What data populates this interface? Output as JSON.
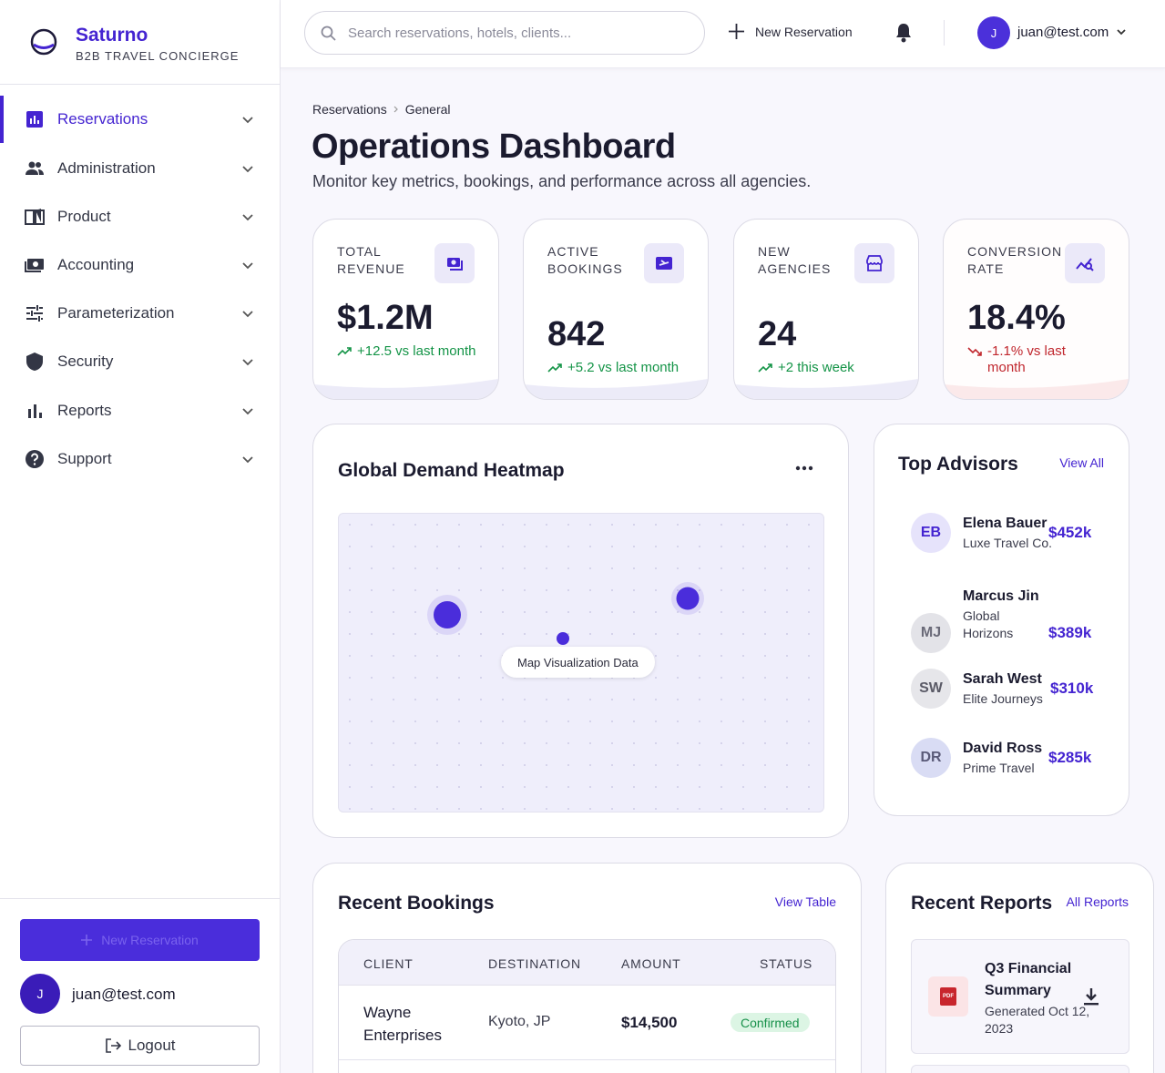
{
  "brand": {
    "name": "Saturno",
    "tagline": "B2B TRAVEL CONCIERGE"
  },
  "nav": [
    "Reservations",
    "Administration",
    "Product",
    "Accounting",
    "Parameterization",
    "Security",
    "Reports",
    "Support"
  ],
  "sidebar_footer": {
    "button": "New Reservation",
    "avatar": "J",
    "user": "juan@test.com",
    "logout": "Logout"
  },
  "topbar": {
    "search_placeholder": "Search reservations, hotels, clients...",
    "new_button": "New Reservation",
    "avatar": "J",
    "user": "juan@test.com"
  },
  "breadcrumb": [
    "Reservations",
    "General"
  ],
  "header": {
    "title": "Operations Dashboard",
    "subtitle": "Monitor key metrics, bookings, and performance across all agencies."
  },
  "kpis": [
    {
      "label": "TOTAL REVENUE",
      "value": "$1.2M",
      "change": "+12.5 vs last month",
      "trend": "up"
    },
    {
      "label": "ACTIVE BOOKINGS",
      "value": "842",
      "change": "+5.2 vs last month",
      "trend": "up"
    },
    {
      "label": "NEW AGENCIES",
      "value": "24",
      "change": "+2 this week",
      "trend": "up"
    },
    {
      "label": "CONVERSION RATE",
      "value": "18.4%",
      "change": "-1.1% vs last month",
      "trend": "down"
    }
  ],
  "heatmap": {
    "title": "Global Demand Heatmap",
    "label": "Map Visualization Data"
  },
  "advisors": {
    "title": "Top Advisors",
    "link": "View All",
    "items": [
      {
        "initials": "EB",
        "name": "Elena Bauer",
        "company": "Luxe Travel Co.",
        "amount": "$452k"
      },
      {
        "initials": "MJ",
        "name": "Marcus Jin",
        "company": "Global Horizons",
        "amount": "$389k"
      },
      {
        "initials": "SW",
        "name": "Sarah West",
        "company": "Elite Journeys",
        "amount": "$310k"
      },
      {
        "initials": "DR",
        "name": "David Ross",
        "company": "Prime Travel",
        "amount": "$285k"
      }
    ]
  },
  "bookings": {
    "title": "Recent Bookings",
    "link": "View Table",
    "columns": [
      "CLIENT",
      "DESTINATION",
      "AMOUNT",
      "STATUS"
    ],
    "rows": [
      [
        "Wayne Enterprises",
        "Kyoto, JP",
        "$14,500",
        "Confirmed"
      ]
    ]
  },
  "reports": {
    "title": "Recent Reports",
    "link": "All Reports",
    "items": [
      {
        "icon": "PDF",
        "name": "Q3 Financial Summary",
        "meta": "Generated Oct 12, 2023"
      }
    ]
  }
}
